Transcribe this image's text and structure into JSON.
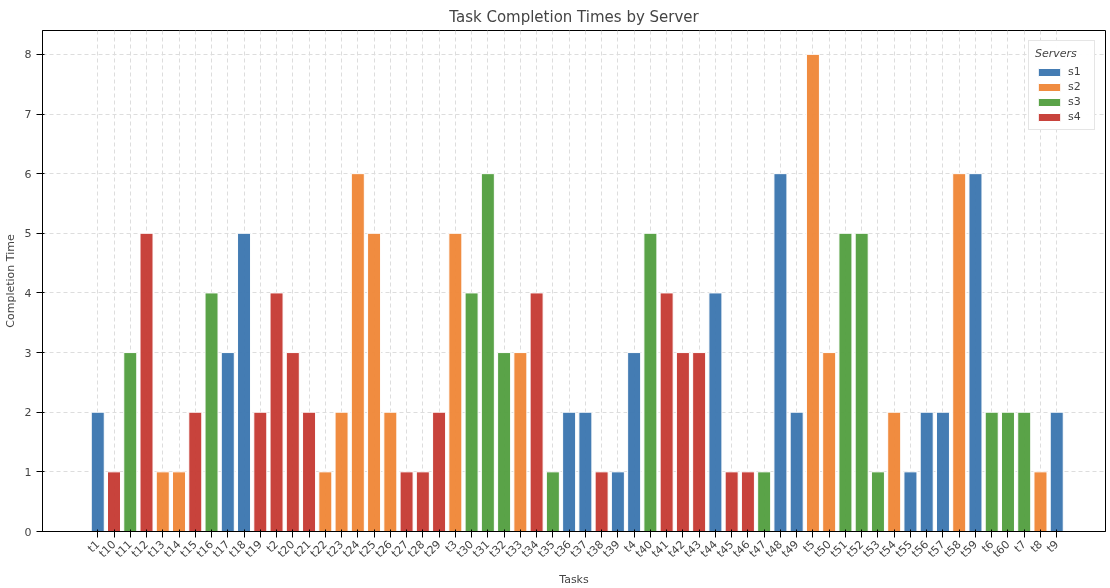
{
  "chart_data": {
    "type": "bar",
    "title": "Task Completion Times by Server",
    "xlabel": "Tasks",
    "ylabel": "Completion Time",
    "legend_title": "Servers",
    "categories": [
      "t1",
      "t10",
      "t11",
      "t12",
      "t13",
      "t14",
      "t15",
      "t16",
      "t17",
      "t18",
      "t19",
      "t2",
      "t20",
      "t21",
      "t22",
      "t23",
      "t24",
      "t25",
      "t26",
      "t27",
      "t28",
      "t29",
      "t3",
      "t30",
      "t31",
      "t32",
      "t33",
      "t34",
      "t35",
      "t36",
      "t37",
      "t38",
      "t39",
      "t4",
      "t40",
      "t41",
      "t42",
      "t43",
      "t44",
      "t45",
      "t46",
      "t47",
      "t48",
      "t49",
      "t5",
      "t50",
      "t51",
      "t52",
      "t53",
      "t54",
      "t55",
      "t56",
      "t57",
      "t58",
      "t59",
      "t6",
      "t60",
      "t7",
      "t8",
      "t9"
    ],
    "series": [
      {
        "name": "s1",
        "color": "#3a75af",
        "values": [
          2,
          null,
          null,
          null,
          null,
          null,
          null,
          null,
          3,
          5,
          null,
          null,
          null,
          null,
          null,
          null,
          null,
          null,
          null,
          null,
          null,
          null,
          null,
          null,
          null,
          null,
          null,
          null,
          null,
          2,
          2,
          null,
          1,
          3,
          null,
          null,
          null,
          null,
          4,
          null,
          null,
          null,
          6,
          2,
          null,
          null,
          null,
          null,
          null,
          null,
          1,
          2,
          2,
          null,
          6,
          null,
          null,
          null,
          null,
          2
        ]
      },
      {
        "name": "s2",
        "color": "#ef8636",
        "values": [
          null,
          null,
          null,
          null,
          1,
          1,
          null,
          null,
          null,
          null,
          null,
          null,
          null,
          null,
          1,
          2,
          6,
          5,
          2,
          null,
          null,
          null,
          5,
          null,
          null,
          null,
          3,
          null,
          null,
          null,
          null,
          null,
          null,
          null,
          null,
          null,
          null,
          null,
          null,
          null,
          null,
          null,
          null,
          null,
          8,
          3,
          null,
          null,
          null,
          2,
          null,
          null,
          null,
          6,
          null,
          null,
          null,
          null,
          1,
          null
        ]
      },
      {
        "name": "s3",
        "color": "#519e3e",
        "values": [
          null,
          null,
          3,
          null,
          null,
          null,
          null,
          4,
          null,
          null,
          null,
          null,
          null,
          null,
          null,
          null,
          null,
          null,
          null,
          null,
          null,
          null,
          null,
          4,
          6,
          3,
          null,
          null,
          1,
          null,
          null,
          null,
          null,
          null,
          5,
          null,
          null,
          null,
          null,
          null,
          null,
          1,
          null,
          null,
          null,
          null,
          5,
          5,
          1,
          null,
          null,
          null,
          null,
          null,
          null,
          2,
          2,
          2,
          null,
          null
        ]
      },
      {
        "name": "s4",
        "color": "#c53932",
        "values": [
          null,
          1,
          null,
          5,
          null,
          null,
          2,
          null,
          null,
          null,
          2,
          4,
          3,
          2,
          null,
          null,
          null,
          null,
          null,
          1,
          1,
          2,
          null,
          null,
          null,
          null,
          null,
          4,
          null,
          null,
          null,
          1,
          null,
          null,
          null,
          4,
          3,
          3,
          null,
          1,
          1,
          null,
          null,
          null,
          null,
          null,
          null,
          null,
          null,
          null,
          null,
          null,
          null,
          null,
          null,
          null,
          null,
          null,
          null,
          null
        ]
      }
    ],
    "ylim": [
      0,
      8.4
    ],
    "yticks": [
      0,
      1,
      2,
      3,
      4,
      5,
      6,
      7,
      8
    ],
    "grid": true,
    "legend": "top right"
  }
}
